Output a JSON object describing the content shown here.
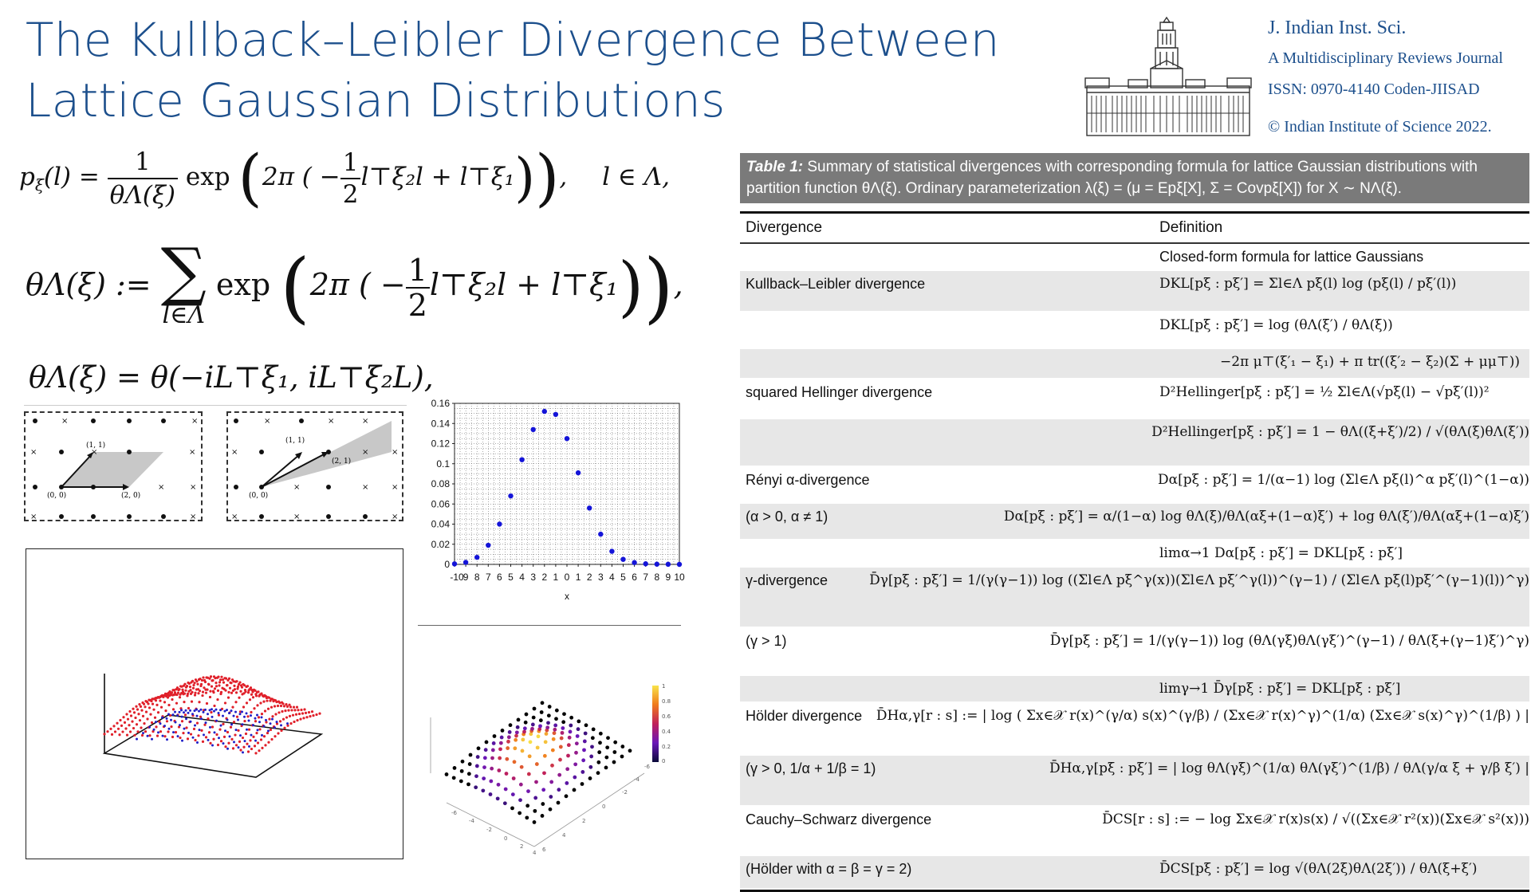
{
  "slide": {
    "title": "The Kullback–Leibler Divergence Between Lattice Gaussian Distributions"
  },
  "journal": {
    "name": "J. Indian Inst. Sci.",
    "subtitle": "A Multidisciplinary Reviews Journal",
    "issn": "ISSN: 0970-4140 Coden-JIISAD",
    "copyright": "© Indian Institute of Science 2022."
  },
  "equations": {
    "eq1_lhs": "p",
    "eq1_sub": "ξ",
    "eq1_arg": "(l) =",
    "eq1_frac_num": "1",
    "eq1_frac_den": "θΛ(ξ)",
    "eq1_exp": "exp",
    "eq1_body": "2π ( −",
    "eq1_half_num": "1",
    "eq1_half_den": "2",
    "eq1_quad": "l⊤ξ₂l + l⊤ξ₁",
    "eq1_tail": "l ∈ Λ,",
    "eq2_lhs": "θΛ(ξ) :=",
    "eq2_sum_sub": "l∈Λ",
    "eq2_exp": "exp",
    "eq2_body": "2π ( −",
    "eq2_half_num": "1",
    "eq2_half_den": "2",
    "eq2_quad": "l⊤ξ₂l + l⊤ξ₁",
    "eq3": "θΛ(ξ) = θ(−iL⊤ξ₁, iL⊤ξ₂L),"
  },
  "lattice_diagrams": [
    {
      "labels": [
        "(1, 1)",
        "(0, 0)",
        "(2, 0)"
      ]
    },
    {
      "labels": [
        "(1, 1)",
        "(2, 1)",
        "(0, 0)"
      ]
    }
  ],
  "chart_data": {
    "type": "scatter",
    "title": "",
    "xlabel": "x",
    "ylabel": "",
    "x": [
      -10,
      -9,
      -8,
      -7,
      -6,
      -5,
      -4,
      -3,
      -2,
      -1,
      0,
      1,
      2,
      3,
      4,
      5,
      6,
      7,
      8,
      9,
      10
    ],
    "y": [
      0.0005,
      0.002,
      0.007,
      0.019,
      0.04,
      0.068,
      0.104,
      0.134,
      0.152,
      0.149,
      0.125,
      0.091,
      0.056,
      0.03,
      0.013,
      0.005,
      0.0018,
      0.0006,
      0.0002,
      0.0001,
      0.0
    ],
    "xlim": [
      -10,
      10
    ],
    "ylim": [
      0,
      0.16
    ],
    "yticks": [
      "0",
      "0.02",
      "0.04",
      "0.06",
      "0.08",
      "0.1",
      "0.12",
      "0.14",
      "0.16"
    ],
    "xticks": [
      "-10",
      "9",
      "8",
      "7",
      "6",
      "5",
      "4",
      "3",
      "2",
      "1",
      "0",
      "1",
      "2",
      "3",
      "4",
      "5",
      "6",
      "7",
      "8",
      "9",
      "10"
    ],
    "point_color": "#1414d8",
    "grid": true
  },
  "heatmap_colorbar": {
    "ticks": [
      "1",
      "0.8",
      "0.6",
      "0.4",
      "0.2",
      "0"
    ]
  },
  "table": {
    "caption_label": "Table 1:",
    "caption_text": "Summary of statistical divergences with corresponding formula for lattice Gaussian distributions with partition function θΛ(ξ). Ordinary parameterization λ(ξ) = (μ = Epξ[X], Σ = Covpξ[X]) for X ∼ NΛ(ξ).",
    "header_divergence": "Divergence",
    "header_definition": "Definition",
    "rows": [
      {
        "divergence": "",
        "definition": "Closed-form formula for lattice Gaussians"
      },
      {
        "divergence": "Kullback–Leibler divergence",
        "definition": "DKL[pξ : pξ′] = Σl∈Λ pξ(l) log (pξ(l) / pξ′(l))"
      },
      {
        "divergence": "",
        "definition": "DKL[pξ : pξ′] = log (θΛ(ξ′) / θΛ(ξ))"
      },
      {
        "divergence": "",
        "definition": "−2π μ⊤(ξ′₁ − ξ₁) + π tr((ξ′₂ − ξ₂)(Σ + μμ⊤))"
      },
      {
        "divergence": "squared Hellinger divergence",
        "definition": "D²Hellinger[pξ : pξ′] = ½ Σl∈Λ(√pξ(l) − √pξ′(l))²"
      },
      {
        "divergence": "",
        "definition": "D²Hellinger[pξ : pξ′] = 1 − θΛ((ξ+ξ′)/2) / √(θΛ(ξ)θΛ(ξ′))"
      },
      {
        "divergence": "Rényi α-divergence",
        "definition": "Dα[pξ : pξ′] = 1/(α−1) log (Σl∈Λ pξ(l)^α pξ′(l)^(1−α))"
      },
      {
        "divergence": "(α > 0, α ≠ 1)",
        "definition": "Dα[pξ : pξ′] = α/(1−α) log θΛ(ξ)/θΛ(αξ+(1−α)ξ′) + log θΛ(ξ′)/θΛ(αξ+(1−α)ξ′)"
      },
      {
        "divergence": "",
        "definition": "limα→1 Dα[pξ : pξ′] = DKL[pξ : pξ′]"
      },
      {
        "divergence": "γ-divergence",
        "definition": "D̄γ[pξ : pξ′] = 1/(γ(γ−1)) log ((Σl∈Λ pξ^γ(x))(Σl∈Λ pξ′^γ(l))^(γ−1) / (Σl∈Λ pξ(l)pξ′^(γ−1)(l))^γ)"
      },
      {
        "divergence": "(γ > 1)",
        "definition": "D̄γ[pξ : pξ′] = 1/(γ(γ−1)) log (θΛ(γξ)θΛ(γξ′)^(γ−1) / θΛ(ξ+(γ−1)ξ′)^γ)"
      },
      {
        "divergence": "",
        "definition": "limγ→1 D̄γ[pξ : pξ′] = DKL[pξ : pξ′]"
      },
      {
        "divergence": "Hölder divergence",
        "definition": "D̄Hα,γ[r : s] := | log ( Σx∈𝒳 r(x)^(γ/α) s(x)^(γ/β) / (Σx∈𝒳 r(x)^γ)^(1/α) (Σx∈𝒳 s(x)^γ)^(1/β) ) |"
      },
      {
        "divergence": "(γ > 0, 1/α + 1/β = 1)",
        "definition": "D̄Hα,γ[pξ : pξ′] = | log θΛ(γξ)^(1/α) θΛ(γξ′)^(1/β) / θΛ(γ/α ξ + γ/β ξ′) |"
      },
      {
        "divergence": "Cauchy–Schwarz divergence",
        "definition": "D̄CS[r : s] := − log Σx∈𝒳 r(x)s(x) / √((Σx∈𝒳 r²(x))(Σx∈𝒳 s²(x)))"
      },
      {
        "divergence": "(Hölder with α = β = γ = 2)",
        "definition": "D̄CS[pξ : pξ′] = log √(θΛ(2ξ)θΛ(2ξ′)) / θΛ(ξ+ξ′)"
      }
    ]
  },
  "colors": {
    "title_blue": "#1c4f8c",
    "caption_grey": "#7a7a7a",
    "row_stripe": "#e7e7e7",
    "scatter_blue": "#1414d8",
    "surface_red": "#e0202a",
    "surface_blue": "#2020c8"
  }
}
